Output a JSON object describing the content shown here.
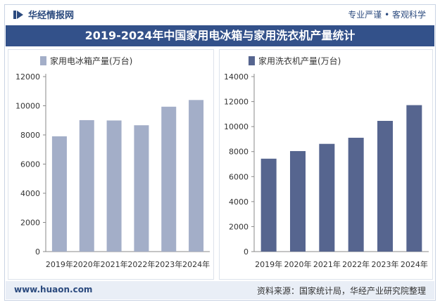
{
  "brand": {
    "name": "华经情报网",
    "slogan": "专业严谨 • 客观科学"
  },
  "title": "2019-2024年中国家用电冰箱与家用洗衣机产量统计",
  "footer": {
    "site": "www.huaon.com",
    "source": "资料来源：国家统计局，华经产业研究院整理"
  },
  "colors": {
    "fridge": "#a3aec8",
    "washer": "#56658f",
    "header": "#33518a"
  },
  "chart_data": [
    {
      "type": "bar",
      "categories": [
        "2019年",
        "2020年",
        "2021年",
        "2022年",
        "2023年",
        "2024年"
      ],
      "series": [
        {
          "name": "家用电冰箱产量(万台)",
          "values": [
            7904,
            9015,
            8992,
            8664,
            9936,
            10394
          ]
        }
      ],
      "ylim": [
        0,
        12000
      ],
      "yticks": [
        0,
        2000,
        4000,
        6000,
        8000,
        10000,
        12000
      ],
      "legend": "top-left",
      "grid": false
    },
    {
      "type": "bar",
      "categories": [
        "2019年",
        "2020年",
        "2021年",
        "2022年",
        "2023年",
        "2024年"
      ],
      "series": [
        {
          "name": "家用洗衣机产量(万台)",
          "values": [
            7433,
            8042,
            8619,
            9107,
            10458,
            11717
          ]
        }
      ],
      "ylim": [
        0,
        14000
      ],
      "yticks": [
        0,
        2000,
        4000,
        6000,
        8000,
        10000,
        12000,
        14000
      ],
      "legend": "top-left",
      "grid": false
    }
  ]
}
